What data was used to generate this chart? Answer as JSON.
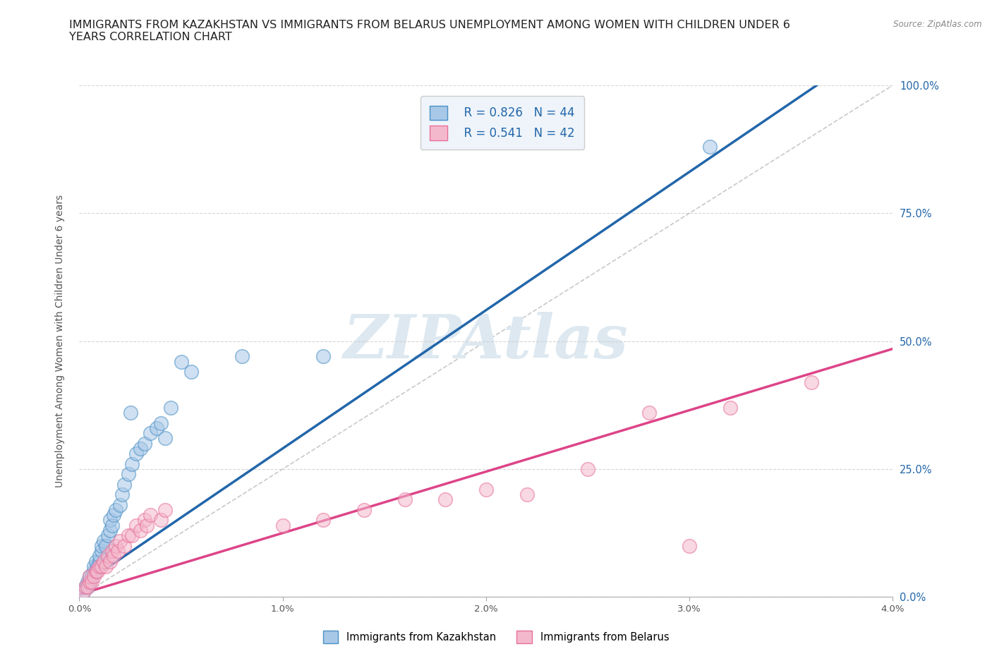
{
  "title": "IMMIGRANTS FROM KAZAKHSTAN VS IMMIGRANTS FROM BELARUS UNEMPLOYMENT AMONG WOMEN WITH CHILDREN UNDER 6\nYEARS CORRELATION CHART",
  "source_text": "Source: ZipAtlas.com",
  "ylabel": "Unemployment Among Women with Children Under 6 years",
  "xlim": [
    0,
    0.04
  ],
  "ylim": [
    0,
    1.0
  ],
  "xticks": [
    0.0,
    0.01,
    0.02,
    0.03,
    0.04
  ],
  "xtick_labels": [
    "0.0%",
    "1.0%",
    "2.0%",
    "3.0%",
    "4.0%"
  ],
  "ytick_labels_right": [
    "0.0%",
    "25.0%",
    "50.0%",
    "75.0%",
    "100.0%"
  ],
  "kazakh_color": "#a8c8e8",
  "belarus_color": "#f4b8cc",
  "kazakh_edge_color": "#4a90c4",
  "belarus_edge_color": "#e8709a",
  "kazakh_line_color": "#2266aa",
  "belarus_line_color": "#dd4488",
  "ref_line_color": "#bbbbbb",
  "watermark_color": "#dde8f0",
  "legend_box_color": "#eef4fa",
  "legend_text_color": "#2266aa",
  "R_kazakh": 0.826,
  "N_kazakh": 44,
  "R_belarus": 0.541,
  "N_belarus": 42,
  "kazakh_scatter_x": [
    0.0002,
    0.0003,
    0.0004,
    0.0004,
    0.0005,
    0.0005,
    0.0006,
    0.0007,
    0.0007,
    0.0008,
    0.0008,
    0.0009,
    0.001,
    0.001,
    0.0011,
    0.0011,
    0.0012,
    0.0013,
    0.0014,
    0.0015,
    0.0015,
    0.0016,
    0.0017,
    0.0018,
    0.002,
    0.0021,
    0.0022,
    0.0024,
    0.0025,
    0.0026,
    0.0028,
    0.003,
    0.0032,
    0.0035,
    0.0038,
    0.004,
    0.0042,
    0.0045,
    0.005,
    0.0055,
    0.008,
    0.012,
    0.02,
    0.031
  ],
  "kazakh_scatter_y": [
    0.01,
    0.02,
    0.02,
    0.03,
    0.03,
    0.04,
    0.04,
    0.05,
    0.06,
    0.05,
    0.07,
    0.06,
    0.07,
    0.08,
    0.09,
    0.1,
    0.11,
    0.1,
    0.12,
    0.13,
    0.15,
    0.14,
    0.16,
    0.17,
    0.18,
    0.2,
    0.22,
    0.24,
    0.36,
    0.26,
    0.28,
    0.29,
    0.3,
    0.32,
    0.33,
    0.34,
    0.31,
    0.37,
    0.46,
    0.44,
    0.47,
    0.47,
    0.9,
    0.88
  ],
  "belarus_scatter_x": [
    0.0002,
    0.0003,
    0.0004,
    0.0005,
    0.0005,
    0.0006,
    0.0007,
    0.0008,
    0.0009,
    0.001,
    0.0011,
    0.0012,
    0.0013,
    0.0014,
    0.0015,
    0.0016,
    0.0017,
    0.0018,
    0.0019,
    0.002,
    0.0022,
    0.0024,
    0.0026,
    0.0028,
    0.003,
    0.0032,
    0.0033,
    0.0035,
    0.004,
    0.0042,
    0.01,
    0.012,
    0.014,
    0.016,
    0.018,
    0.02,
    0.022,
    0.025,
    0.028,
    0.03,
    0.032,
    0.036
  ],
  "belarus_scatter_y": [
    0.01,
    0.02,
    0.02,
    0.03,
    0.04,
    0.03,
    0.04,
    0.05,
    0.05,
    0.06,
    0.06,
    0.07,
    0.06,
    0.08,
    0.07,
    0.09,
    0.08,
    0.1,
    0.09,
    0.11,
    0.1,
    0.12,
    0.12,
    0.14,
    0.13,
    0.15,
    0.14,
    0.16,
    0.15,
    0.17,
    0.14,
    0.15,
    0.17,
    0.19,
    0.19,
    0.21,
    0.2,
    0.25,
    0.36,
    0.1,
    0.37,
    0.42
  ],
  "kazakh_line_x": [
    0.0,
    0.037
  ],
  "kazakh_line_y": [
    0.02,
    1.02
  ],
  "belarus_line_x": [
    0.0,
    0.04
  ],
  "belarus_line_y": [
    0.005,
    0.485
  ],
  "ref_line_x": [
    0.0,
    0.04
  ],
  "ref_line_y": [
    0.0,
    1.0
  ],
  "title_fontsize": 11.5,
  "axis_label_fontsize": 10,
  "tick_fontsize": 9.5,
  "legend_fontsize": 12
}
